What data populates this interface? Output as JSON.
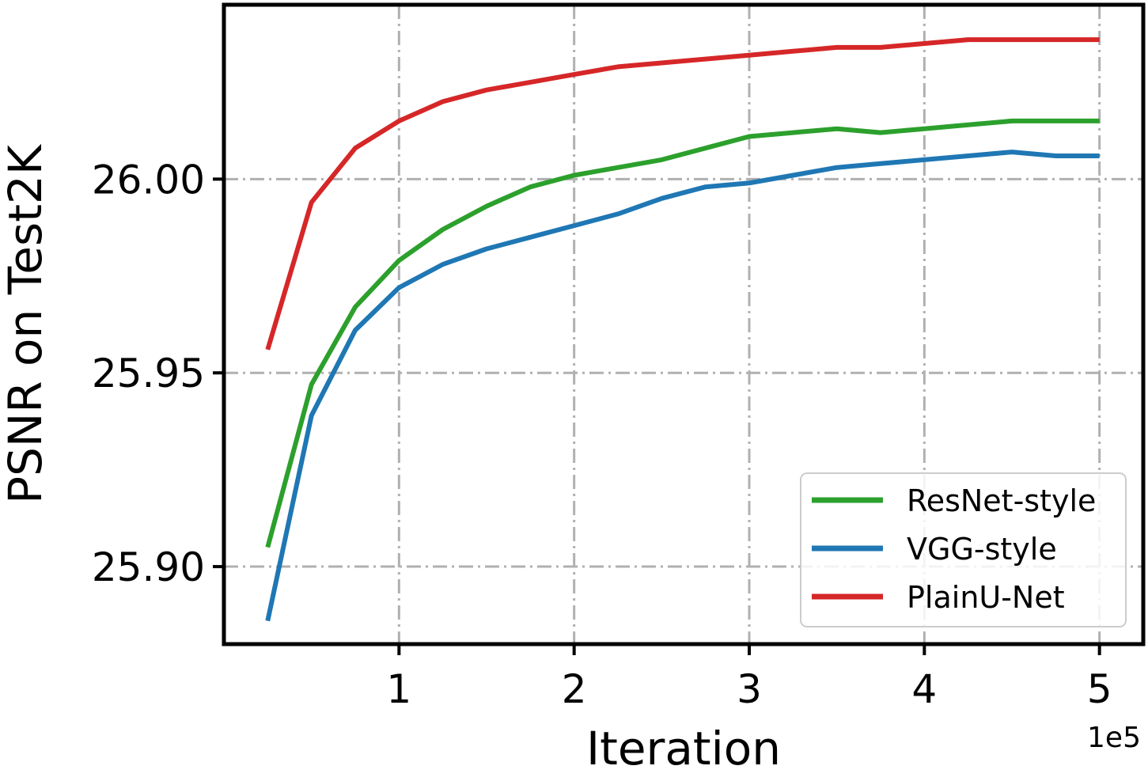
{
  "chart_data": {
    "type": "line",
    "xlabel": "Iteration",
    "ylabel": "PSNR on Test2K",
    "x_offset_label": "1e5",
    "xlim": [
      0.0,
      5.25
    ],
    "ylim": [
      25.88,
      26.045
    ],
    "xticks": [
      1,
      2,
      3,
      4,
      5
    ],
    "xtick_labels": [
      "1",
      "2",
      "3",
      "4",
      "5"
    ],
    "yticks": [
      25.9,
      25.95,
      26.0
    ],
    "ytick_labels": [
      "25.90",
      "25.95",
      "26.00"
    ],
    "grid": true,
    "legend_position": "lower right",
    "x": [
      0.25,
      0.5,
      0.75,
      1.0,
      1.25,
      1.5,
      1.75,
      2.0,
      2.25,
      2.5,
      2.75,
      3.0,
      3.25,
      3.5,
      3.75,
      4.0,
      4.25,
      4.5,
      4.75,
      5.0
    ],
    "series": [
      {
        "name": "ResNet-style",
        "color": "#2ca02c",
        "values": [
          25.905,
          25.947,
          25.967,
          25.979,
          25.987,
          25.993,
          25.998,
          26.001,
          26.003,
          26.005,
          26.008,
          26.011,
          26.012,
          26.013,
          26.012,
          26.013,
          26.014,
          26.015,
          26.015,
          26.015
        ]
      },
      {
        "name": "VGG-style",
        "color": "#1f77b4",
        "values": [
          25.886,
          25.939,
          25.961,
          25.972,
          25.978,
          25.982,
          25.985,
          25.988,
          25.991,
          25.995,
          25.998,
          25.999,
          26.001,
          26.003,
          26.004,
          26.005,
          26.006,
          26.007,
          26.006,
          26.006
        ]
      },
      {
        "name": "PlainU-Net",
        "color": "#d62728",
        "values": [
          25.956,
          25.994,
          26.008,
          26.015,
          26.02,
          26.023,
          26.025,
          26.027,
          26.029,
          26.03,
          26.031,
          26.032,
          26.033,
          26.034,
          26.034,
          26.035,
          26.036,
          26.036,
          26.036,
          26.036
        ]
      }
    ]
  }
}
